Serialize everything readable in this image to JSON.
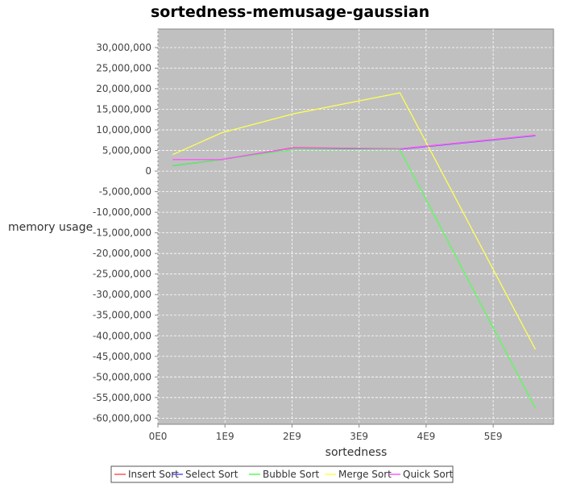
{
  "chart_data": {
    "type": "line",
    "title": "sortedness-memusage-gaussian",
    "xlabel": "sortedness",
    "ylabel": "memory usage",
    "xlim": [
      0,
      5900000000
    ],
    "ylim": [
      -61500000,
      34500000
    ],
    "x_ticks": [
      0,
      1000000000,
      2000000000,
      3000000000,
      4000000000,
      5000000000
    ],
    "x_tick_labels": [
      "0E0",
      "1E9",
      "2E9",
      "3E9",
      "4E9",
      "5E9"
    ],
    "y_ticks": [
      30000000,
      25000000,
      20000000,
      15000000,
      10000000,
      5000000,
      0,
      -5000000,
      -10000000,
      -15000000,
      -20000000,
      -25000000,
      -30000000,
      -35000000,
      -40000000,
      -45000000,
      -50000000,
      -55000000,
      -60000000
    ],
    "y_tick_labels": [
      "30,000,000",
      "25,000,000",
      "20,000,000",
      "15,000,000",
      "10,000,000",
      "5,000,000",
      "0",
      "-5,000,000",
      "-10,000,000",
      "-15,000,000",
      "-20,000,000",
      "-25,000,000",
      "-30,000,000",
      "-35,000,000",
      "-40,000,000",
      "-45,000,000",
      "-50,000,000",
      "-55,000,000",
      "-60,000,000"
    ],
    "grid": true,
    "legend_position": "bottom",
    "background_color": "#c0c0c0",
    "x": [
      220000000,
      950000000,
      2020000000,
      3610000000,
      5630000000
    ],
    "series": [
      {
        "name": "Insert Sort",
        "color": "#ff5555",
        "values": [
          1300000,
          2800000,
          5700000,
          5400000,
          8700000
        ]
      },
      {
        "name": "Select Sort",
        "color": "#5555ff",
        "values": [
          1300000,
          2800000,
          5600000,
          5300000,
          8600000
        ]
      },
      {
        "name": "Bubble Sort",
        "color": "#55ff55",
        "values": [
          1300000,
          2800000,
          5200000,
          5200000,
          -57600000
        ]
      },
      {
        "name": "Merge Sort",
        "color": "#ffff55",
        "values": [
          4000000,
          9300000,
          13900000,
          19000000,
          -43300000
        ]
      },
      {
        "name": "Quick Sort",
        "color": "#ff55ff",
        "values": [
          2800000,
          2800000,
          5600000,
          5400000,
          8700000
        ]
      }
    ]
  }
}
